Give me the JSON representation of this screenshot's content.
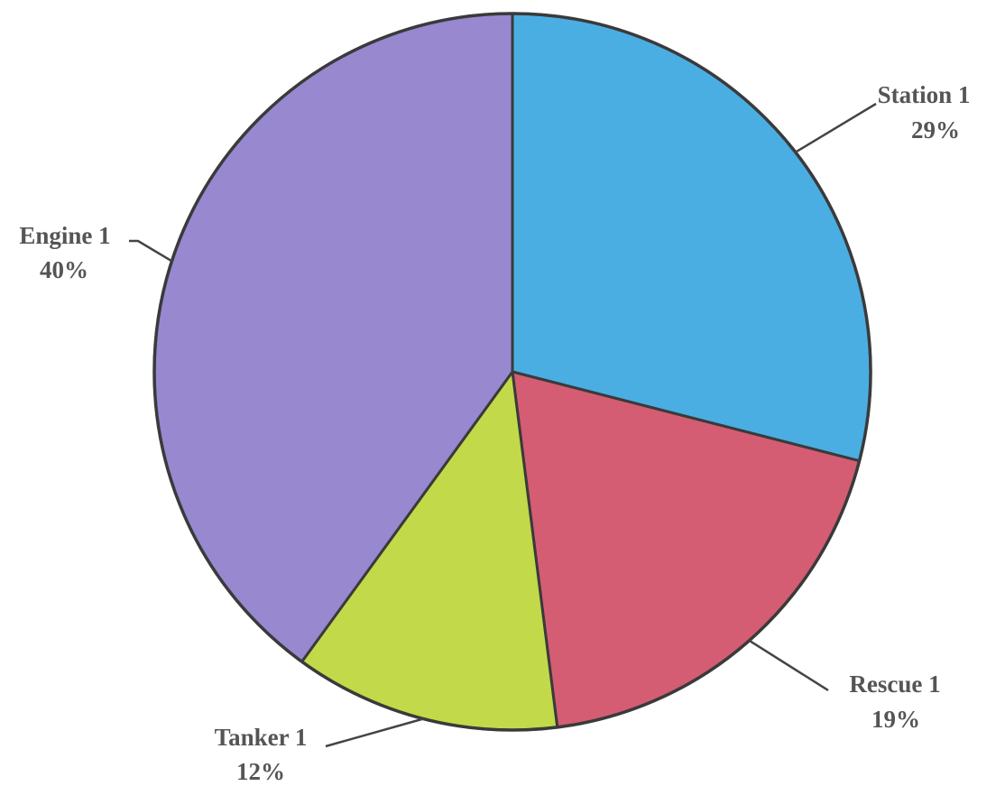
{
  "chart_data": {
    "type": "pie",
    "slices": [
      {
        "label": "Station 1",
        "value": 29,
        "display": "29%",
        "color": "#4aaee3"
      },
      {
        "label": "Rescue 1",
        "value": 19,
        "display": "19%",
        "color": "#d45d73"
      },
      {
        "label": "Tanker 1",
        "value": 12,
        "display": "12%",
        "color": "#c2d94a"
      },
      {
        "label": "Engine 1",
        "value": 40,
        "display": "40%",
        "color": "#9788d0"
      }
    ],
    "start_angle": "12 o'clock",
    "direction": "clockwise",
    "legend": "none",
    "labels": "outside with leader lines"
  }
}
